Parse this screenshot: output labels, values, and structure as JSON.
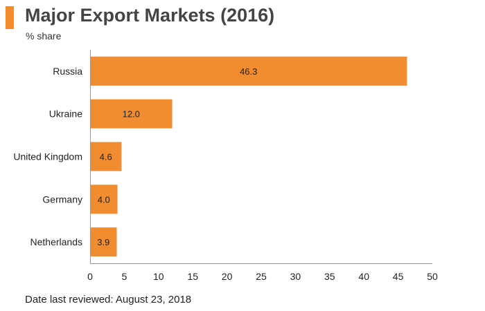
{
  "header": {
    "title": "Major Export Markets (2016)",
    "subtitle": "% share"
  },
  "footer": {
    "note": "Date last reviewed: August 23, 2018"
  },
  "colors": {
    "bar": "#f28c30",
    "accent": "#f28c30",
    "axis": "#999999"
  },
  "chart_data": {
    "type": "bar",
    "orientation": "horizontal",
    "title": "Major Export Markets (2016)",
    "subtitle": "% share",
    "categories": [
      "Russia",
      "Ukraine",
      "United Kingdom",
      "Germany",
      "Netherlands"
    ],
    "values": [
      46.3,
      12.0,
      4.6,
      4.0,
      3.9
    ],
    "value_labels": [
      "46.3",
      "12.0",
      "4.6",
      "4.0",
      "3.9"
    ],
    "xlim": [
      0,
      50
    ],
    "xticks": [
      0,
      5,
      10,
      15,
      20,
      25,
      30,
      35,
      40,
      45,
      50
    ],
    "xlabel": "",
    "ylabel": "",
    "grid": false,
    "legend": "none"
  }
}
